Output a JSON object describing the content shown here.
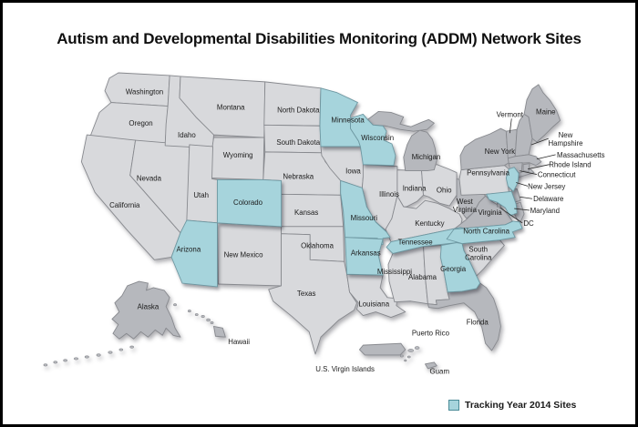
{
  "title": "Autism and Developmental Disabilities Monitoring (ADDM) Network Sites",
  "legend": {
    "label": "Tracking Year 2014 Sites"
  },
  "colors": {
    "site_fill": "#a6d4dc",
    "state_fill": "#d8d9dc",
    "dark_fill": "#b6b8bd",
    "state_stroke": "#87898e",
    "site_stroke": "#6e98a2",
    "label_color": "#1b1b1b",
    "leader_line": "#2b2b2b",
    "background": "#ffffff",
    "frame": "#000000"
  },
  "map": {
    "states": [
      {
        "id": "WA",
        "name": "Washington",
        "site": false
      },
      {
        "id": "OR",
        "name": "Oregon",
        "site": false
      },
      {
        "id": "CA",
        "name": "California",
        "site": false
      },
      {
        "id": "NV",
        "name": "Nevada",
        "site": false
      },
      {
        "id": "ID",
        "name": "Idaho",
        "site": false
      },
      {
        "id": "MT",
        "name": "Montana",
        "site": false
      },
      {
        "id": "WY",
        "name": "Wyoming",
        "site": false
      },
      {
        "id": "UT",
        "name": "Utah",
        "site": false
      },
      {
        "id": "CO",
        "name": "Colorado",
        "site": true
      },
      {
        "id": "AZ",
        "name": "Arizona",
        "site": true
      },
      {
        "id": "NM",
        "name": "New Mexico",
        "site": false
      },
      {
        "id": "ND",
        "name": "North Dakota",
        "site": false
      },
      {
        "id": "SD",
        "name": "South Dakota",
        "site": false
      },
      {
        "id": "NE",
        "name": "Nebraska",
        "site": false
      },
      {
        "id": "KS",
        "name": "Kansas",
        "site": false
      },
      {
        "id": "OK",
        "name": "Oklahoma",
        "site": false
      },
      {
        "id": "TX",
        "name": "Texas",
        "site": false
      },
      {
        "id": "MN",
        "name": "Minnesota",
        "site": true
      },
      {
        "id": "IA",
        "name": "Iowa",
        "site": false
      },
      {
        "id": "MO",
        "name": "Missouri",
        "site": true
      },
      {
        "id": "AR",
        "name": "Arkansas",
        "site": true
      },
      {
        "id": "LA",
        "name": "Louisiana",
        "site": false
      },
      {
        "id": "WI",
        "name": "Wisconsin",
        "site": true
      },
      {
        "id": "IL",
        "name": "Illinois",
        "site": false
      },
      {
        "id": "IN",
        "name": "Indiana",
        "site": false
      },
      {
        "id": "OH",
        "name": "Ohio",
        "site": false
      },
      {
        "id": "MI",
        "name": "Michigan",
        "site": false
      },
      {
        "id": "KY",
        "name": "Kentucky",
        "site": false
      },
      {
        "id": "TN",
        "name": "Tennessee",
        "site": true
      },
      {
        "id": "MS",
        "name": "Mississippi",
        "site": false
      },
      {
        "id": "AL",
        "name": "Alabama",
        "site": false
      },
      {
        "id": "GA",
        "name": "Georgia",
        "site": true
      },
      {
        "id": "FL",
        "name": "Florida",
        "site": false
      },
      {
        "id": "SC",
        "name": "South Carolina",
        "site": false
      },
      {
        "id": "NC",
        "name": "North Carolina",
        "site": true
      },
      {
        "id": "VA",
        "name": "Virginia",
        "site": false
      },
      {
        "id": "WV",
        "name": "West Virginia",
        "site": false
      },
      {
        "id": "PA",
        "name": "Pennsylvania",
        "site": false
      },
      {
        "id": "NY",
        "name": "New York",
        "site": false
      },
      {
        "id": "VT",
        "name": "Vermont",
        "site": false
      },
      {
        "id": "NH",
        "name": "New Hampshire",
        "site": false
      },
      {
        "id": "ME",
        "name": "Maine",
        "site": false
      },
      {
        "id": "MA",
        "name": "Massachusetts",
        "site": false
      },
      {
        "id": "RI",
        "name": "Rhode Island",
        "site": false
      },
      {
        "id": "CT",
        "name": "Connecticut",
        "site": false
      },
      {
        "id": "NJ",
        "name": "New Jersey",
        "site": true
      },
      {
        "id": "DE",
        "name": "Delaware",
        "site": false
      },
      {
        "id": "MD",
        "name": "Maryland",
        "site": true
      },
      {
        "id": "DC",
        "name": "DC",
        "site": false
      }
    ],
    "territories": [
      {
        "id": "AK",
        "name": "Alaska"
      },
      {
        "id": "HI",
        "name": "Hawaii"
      },
      {
        "id": "PR",
        "name": "Puerto Rico"
      },
      {
        "id": "VI",
        "name": "U.S. Virgin Islands"
      },
      {
        "id": "GU",
        "name": "Guam"
      }
    ]
  }
}
